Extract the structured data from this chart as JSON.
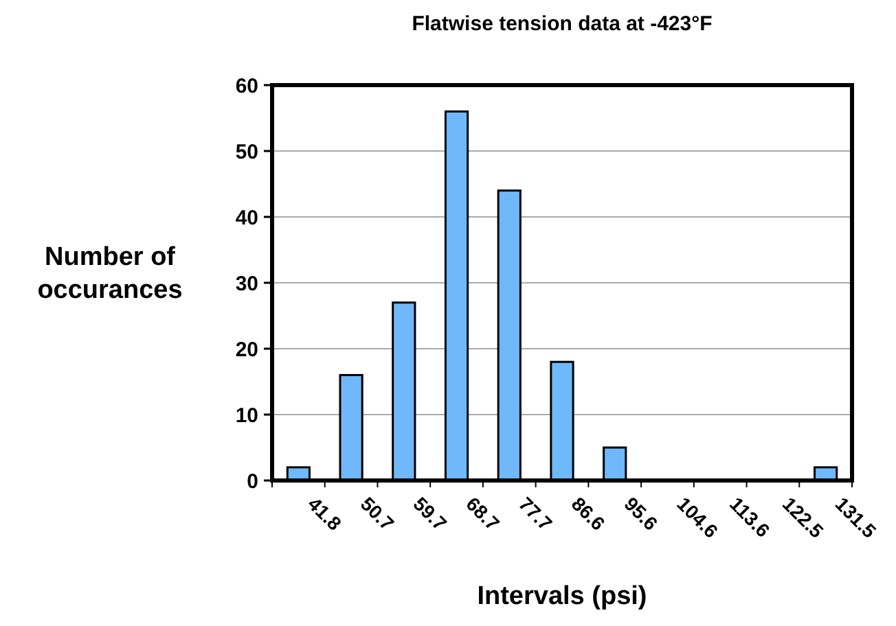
{
  "chart_data": {
    "type": "bar",
    "title": "Flatwise tension data at -423°F",
    "xlabel": "Intervals (psi)",
    "ylabel": "Number of occurances",
    "categories": [
      "41.8",
      "50.7",
      "59.7",
      "68.7",
      "77.7",
      "86.6",
      "95.6",
      "104.6",
      "113.6",
      "122.5",
      "131.5"
    ],
    "values": [
      2,
      16,
      27,
      56,
      44,
      18,
      5,
      0,
      0,
      0,
      2
    ],
    "color": "#6fb8fa",
    "ylim": [
      0,
      60
    ],
    "yticks": [
      0,
      10,
      20,
      30,
      40,
      50,
      60
    ],
    "grid": "y"
  }
}
